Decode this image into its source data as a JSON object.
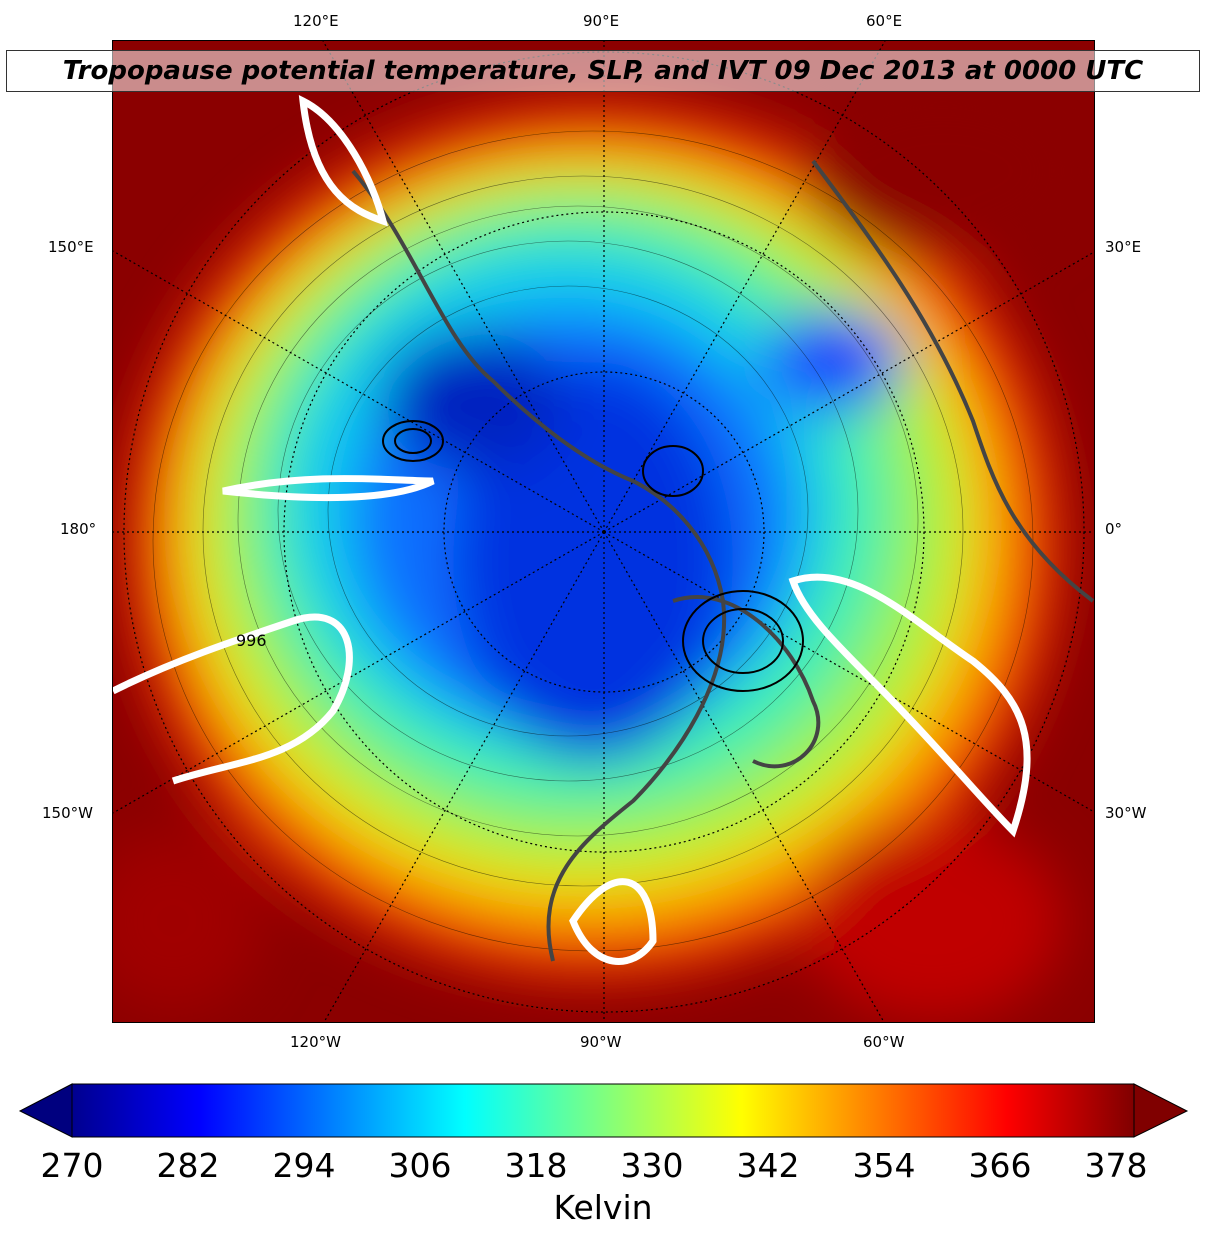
{
  "title": "Tropopause potential temperature, SLP, and IVT 09 Dec 2013 at 0000 UTC",
  "lon_labels": {
    "top": [
      "120°E",
      "90°E",
      "60°E"
    ],
    "bottom": [
      "120°W",
      "90°W",
      "60°W"
    ],
    "left": [
      "150°E",
      "180°",
      "150°W"
    ],
    "right": [
      "30°E",
      "0°",
      "30°W"
    ]
  },
  "contour_labels": [
    "996"
  ],
  "colorbar": {
    "label": "Kelvin",
    "ticks": [
      "270",
      "282",
      "294",
      "306",
      "318",
      "330",
      "342",
      "354",
      "366",
      "378"
    ],
    "range": [
      270,
      380
    ],
    "colormap": "jet",
    "extend": "both"
  },
  "colors": {
    "ivt_contour": "#ffffff",
    "slp_contour": "#000000",
    "coastlines": "#444444",
    "stations": "#b000c0"
  }
}
